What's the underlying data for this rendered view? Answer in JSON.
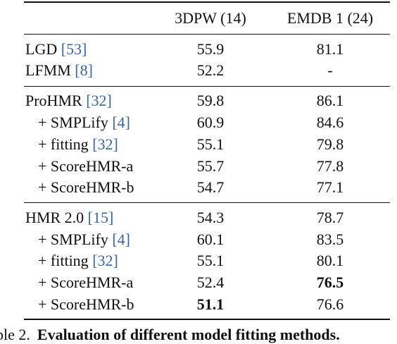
{
  "header": {
    "col_method": "",
    "col_a": "3DPW (14)",
    "col_b": "EMDB 1 (24)"
  },
  "rows": [
    {
      "pre": "LGD ",
      "ref": "[53]",
      "post": "",
      "a": "55.9",
      "b": "81.1"
    },
    {
      "pre": "LFMM ",
      "ref": "[8]",
      "post": "",
      "a": "52.2",
      "b": "-"
    },
    {
      "pre": "ProHMR ",
      "ref": "[32]",
      "post": "",
      "a": "59.8",
      "b": "86.1"
    },
    {
      "pre": "+ SMPLify ",
      "ref": "[4]",
      "post": "",
      "a": "60.9",
      "b": "84.6"
    },
    {
      "pre": "+ fitting ",
      "ref": "[32]",
      "post": "",
      "a": "55.1",
      "b": "79.8"
    },
    {
      "pre": "+ ScoreHMR-a",
      "ref": "",
      "post": "",
      "a": "55.7",
      "b": "77.8"
    },
    {
      "pre": "+ ScoreHMR-b",
      "ref": "",
      "post": "",
      "a": "54.7",
      "b": "77.1"
    },
    {
      "pre": "HMR 2.0 ",
      "ref": "[15]",
      "post": "",
      "a": "54.3",
      "b": "78.7"
    },
    {
      "pre": "+ SMPLify ",
      "ref": "[4]",
      "post": "",
      "a": "60.1",
      "b": "83.5"
    },
    {
      "pre": "+ fitting ",
      "ref": "[32]",
      "post": "",
      "a": "55.1",
      "b": "80.1"
    },
    {
      "pre": "+ ScoreHMR-a",
      "ref": "",
      "post": "",
      "a": "52.4",
      "b": "76.5"
    },
    {
      "pre": "+ ScoreHMR-b",
      "ref": "",
      "post": "",
      "a": "51.1",
      "b": "76.6"
    }
  ],
  "caption": {
    "label": "ble 2.",
    "text": "Evaluation of different model fitting methods."
  }
}
